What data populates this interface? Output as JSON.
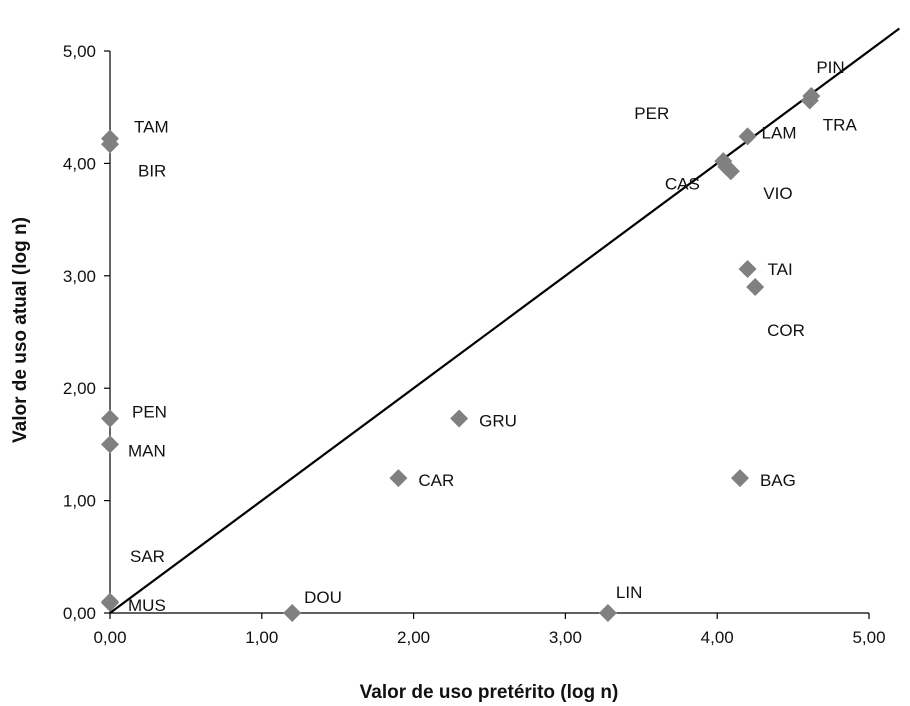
{
  "chart_data": {
    "type": "scatter",
    "title": "",
    "xlabel": "Valor de uso pretérito (log n)",
    "ylabel": "Valor de uso atual (log n)",
    "xlim": [
      0,
      5
    ],
    "ylim": [
      0,
      5
    ],
    "x_ticks": [
      "0,00",
      "1,00",
      "2,00",
      "3,00",
      "4,00",
      "5,00"
    ],
    "y_ticks": [
      "0,00",
      "1,00",
      "2,00",
      "3,00",
      "4,00",
      "5,00"
    ],
    "grid": false,
    "reference_line": {
      "x": [
        0,
        5.2
      ],
      "y": [
        0,
        5.2
      ]
    },
    "marker_color": "#808080",
    "points": [
      {
        "label": "TAM",
        "x": 0.0,
        "y": 4.22
      },
      {
        "label": "BIR",
        "x": 0.0,
        "y": 4.17
      },
      {
        "label": "PEN",
        "x": 0.0,
        "y": 1.73
      },
      {
        "label": "MAN",
        "x": 0.0,
        "y": 1.5
      },
      {
        "label": "SAR",
        "x": 0.0,
        "y": 0.1
      },
      {
        "label": "MUS",
        "x": 0.0,
        "y": 0.09
      },
      {
        "label": "DOU",
        "x": 1.2,
        "y": 0.0
      },
      {
        "label": "CAR",
        "x": 1.9,
        "y": 1.2
      },
      {
        "label": "GRU",
        "x": 2.3,
        "y": 1.73
      },
      {
        "label": "LIN",
        "x": 3.28,
        "y": 0.0
      },
      {
        "label": "PER",
        "x": 4.04,
        "y": 4.02
      },
      {
        "label": "CAS",
        "x": 4.09,
        "y": 3.93
      },
      {
        "label": "VIO",
        "x": 4.06,
        "y": 3.97
      },
      {
        "label": "LAM",
        "x": 4.2,
        "y": 4.24
      },
      {
        "label": "TAI",
        "x": 4.2,
        "y": 3.06
      },
      {
        "label": "COR",
        "x": 4.25,
        "y": 2.9
      },
      {
        "label": "BAG",
        "x": 4.15,
        "y": 1.2
      },
      {
        "label": "PIN",
        "x": 4.62,
        "y": 4.6
      },
      {
        "label": "TRA",
        "x": 4.61,
        "y": 4.56
      }
    ]
  }
}
